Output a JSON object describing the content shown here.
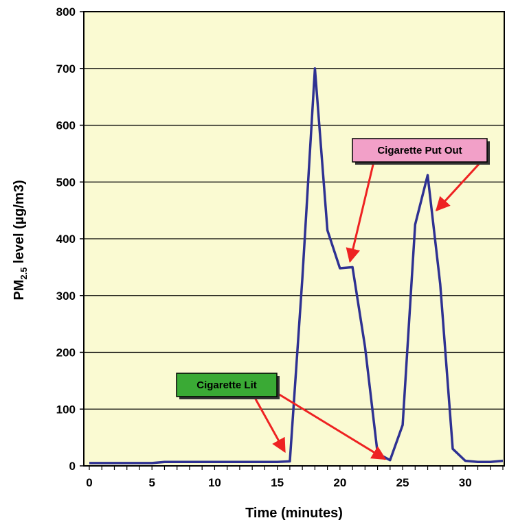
{
  "chart_data": {
    "type": "line",
    "xlabel": "Time (minutes)",
    "ylabel": {
      "prefix": "PM",
      "subscript": "2.5",
      "suffix": " level (µg/m3)"
    },
    "xlim": [
      0,
      33
    ],
    "ylim": [
      0,
      800
    ],
    "x_ticks": [
      0,
      5,
      10,
      15,
      20,
      25,
      30
    ],
    "y_ticks": [
      0,
      100,
      200,
      300,
      400,
      500,
      600,
      700,
      800
    ],
    "grid": "horizontal",
    "background_color": "#fafad2",
    "line_color": "#2e3192",
    "series": [
      {
        "x": [
          0,
          1,
          2,
          3,
          4,
          5,
          6,
          7,
          8,
          9,
          10,
          11,
          12,
          13,
          14,
          15,
          16,
          17,
          18,
          19,
          20,
          21,
          22,
          23,
          24,
          25,
          26,
          27,
          28,
          29,
          30,
          31,
          32,
          33
        ],
        "values": [
          5,
          5,
          5,
          5,
          5,
          5,
          7,
          7,
          7,
          7,
          7,
          7,
          7,
          7,
          7,
          7,
          8,
          330,
          700,
          415,
          348,
          350,
          210,
          22,
          10,
          72,
          425,
          512,
          320,
          30,
          9,
          7,
          7,
          9
        ]
      }
    ],
    "annotations": [
      {
        "text": "Cigarette Lit",
        "fill": "#3aaa35",
        "arrow_color": "#ee2222",
        "arrows_to": [
          [
            15.6,
            25
          ],
          [
            23.6,
            12
          ]
        ]
      },
      {
        "text": "Cigarette Put Out",
        "fill": "#f2a0c8",
        "arrow_color": "#ee2222",
        "arrows_to": [
          [
            20.8,
            360
          ],
          [
            27.7,
            450
          ]
        ]
      }
    ]
  }
}
